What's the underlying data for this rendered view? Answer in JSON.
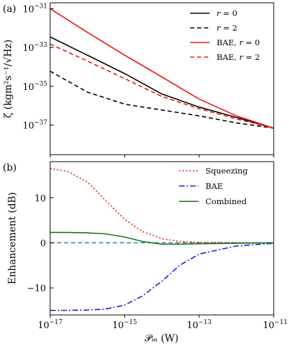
{
  "chart_data": [
    {
      "type": "line",
      "panel_label": "(a)",
      "ylabel": "ζ (kgm²s⁻¹/√Hz)",
      "xlabel": "",
      "x_scale": "log",
      "y_scale": "log",
      "xlim": [
        1e-17,
        1e-11
      ],
      "ylim": [
        3e-39,
        2e-31
      ],
      "x_ticks": [
        1e-17,
        1e-15,
        1e-13,
        1e-11
      ],
      "y_ticks": [
        {
          "value": 1e-31,
          "base": "10",
          "exp": "−31"
        },
        {
          "value": 1e-33,
          "base": "10",
          "exp": "−33"
        },
        {
          "value": 1e-35,
          "base": "10",
          "exp": "−35"
        },
        {
          "value": 1e-37,
          "base": "10",
          "exp": "−37"
        }
      ],
      "legend_position": "top-right",
      "x": [
        1e-17,
        1e-16,
        1e-15,
        1e-14,
        1e-13,
        1e-12,
        1e-11
      ],
      "series": [
        {
          "name": "r = 0",
          "name_main": "r",
          "name_rest": " = 0",
          "color": "#000000",
          "dash": "solid",
          "values": [
            3.5e-33,
            4e-34,
            4.5e-35,
            4e-36,
            8.5e-37,
            2.5e-37,
            7e-38
          ]
        },
        {
          "name": "r = 2",
          "name_main": "r",
          "name_rest": " = 2",
          "color": "#000000",
          "dash": "dashed",
          "values": [
            6e-35,
            5e-36,
            1.2e-36,
            6e-37,
            3e-37,
            1.3e-37,
            7e-38
          ]
        },
        {
          "name": "BAE, r = 0",
          "name_main": "BAE, ",
          "name_italic": "r",
          "name_rest": " = 0",
          "color": "#ee1111",
          "dash": "solid",
          "values": [
            1e-31,
            6e-33,
            4e-34,
            3e-35,
            2.2e-36,
            3e-37,
            7e-38
          ]
        },
        {
          "name": "BAE, r = 2",
          "name_main": "BAE, ",
          "name_italic": "r",
          "name_rest": " = 2",
          "color": "#ee1111",
          "dash": "dashed",
          "values": [
            1.5e-33,
            2e-34,
            2.5e-35,
            3e-36,
            7e-37,
            2.1e-37,
            7e-38
          ]
        }
      ]
    },
    {
      "type": "line",
      "panel_label": "(b)",
      "ylabel": "Enhancement (dB)",
      "xlabel": "𝒫ᵢₙ (W)",
      "x_scale": "log",
      "y_scale": "linear",
      "xlim": [
        1e-17,
        1e-11
      ],
      "ylim": [
        -16,
        18
      ],
      "x_ticks": [
        {
          "value": 1e-17,
          "base": "10",
          "exp": "−17"
        },
        {
          "value": 1e-15,
          "base": "10",
          "exp": "−15"
        },
        {
          "value": 1e-13,
          "base": "10",
          "exp": "−13"
        },
        {
          "value": 1e-11,
          "base": "10",
          "exp": "−11"
        }
      ],
      "y_ticks": [
        10,
        0,
        -10
      ],
      "legend_position": "top-right",
      "reference_line": {
        "y": 0,
        "color": "#1f77b4",
        "dash": "dashed"
      },
      "x": [
        1e-17,
        3e-17,
        1e-16,
        3e-16,
        1e-15,
        3e-15,
        1e-14,
        3e-14,
        1e-13,
        1e-12,
        1e-11
      ],
      "series": [
        {
          "name": "Squeezing",
          "color": "#ee1111",
          "dash": "dotted",
          "values": [
            16.5,
            15.8,
            13.5,
            9.5,
            5.2,
            2.5,
            0.9,
            0.3,
            0.1,
            0.0,
            0.0
          ]
        },
        {
          "name": "BAE",
          "color": "#1122cc",
          "dash": "dashdot",
          "values": [
            -15.0,
            -15.0,
            -14.9,
            -14.7,
            -13.8,
            -11.8,
            -8.5,
            -5.0,
            -2.5,
            -0.7,
            -0.1
          ]
        },
        {
          "name": "Combined",
          "color": "#117711",
          "dash": "solid",
          "values": [
            2.3,
            2.3,
            2.2,
            2.0,
            1.3,
            0.3,
            -0.3,
            -0.3,
            -0.2,
            -0.1,
            0.0
          ]
        }
      ]
    }
  ]
}
